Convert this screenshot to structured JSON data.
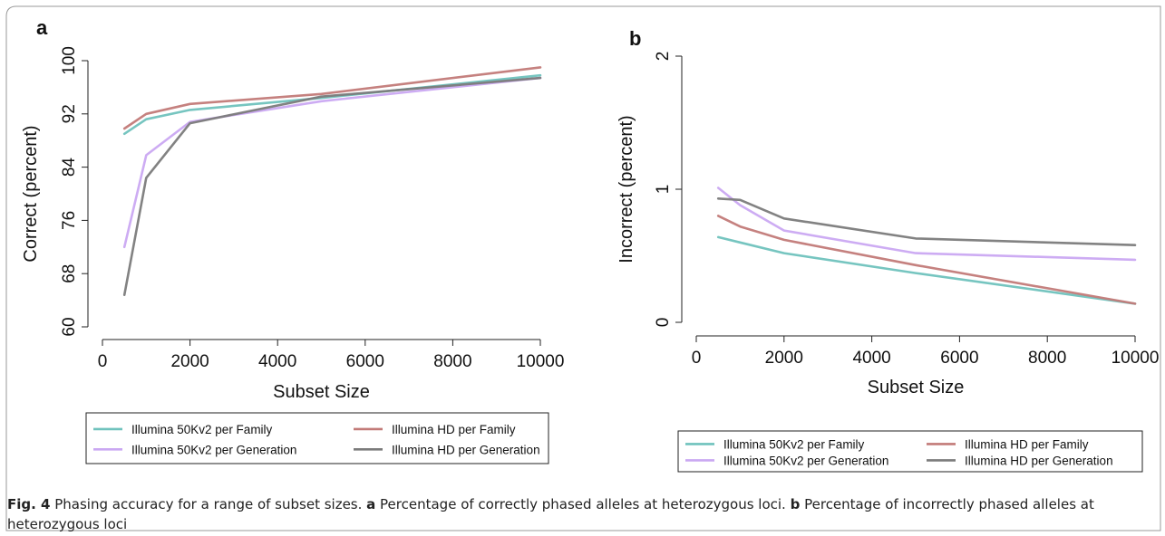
{
  "figure": {
    "panel_labels": [
      "a",
      "b"
    ],
    "caption": {
      "fig_label": "Fig. 4",
      "text1": "  Phasing accuracy for a range of subset sizes. ",
      "label_a": "a",
      "text2": " Percentage of correctly phased alleles at heterozygous loci. ",
      "label_b": "b",
      "text3": " Percentage of incorrectly phased alleles at heterozygous loci"
    }
  },
  "chart_data": [
    {
      "type": "line",
      "panel": "a",
      "xlabel": "Subset Size",
      "ylabel": "Correct (percent)",
      "xlim": [
        0,
        10000
      ],
      "ylim": [
        60,
        100
      ],
      "xticks": [
        0,
        2000,
        4000,
        6000,
        8000,
        10000
      ],
      "yticks": [
        60,
        68,
        76,
        84,
        92,
        100
      ],
      "grid": false,
      "legend_position": "bottom",
      "series": [
        {
          "name": "Illumina 50Kv2 per Family",
          "color": "#6fc2bd",
          "x": [
            500,
            1000,
            2000,
            5000,
            10000
          ],
          "y": [
            89.0,
            91.2,
            92.6,
            94.4,
            97.8
          ]
        },
        {
          "name": "Illumina HD per Family",
          "color": "#c27a78",
          "x": [
            500,
            1000,
            2000,
            5000,
            10000
          ],
          "y": [
            89.8,
            92.0,
            93.5,
            95.0,
            99.0
          ]
        },
        {
          "name": "Illumina 50Kv2 per Generation",
          "color": "#caa8f2",
          "x": [
            500,
            1000,
            2000,
            5000,
            10000
          ],
          "y": [
            72.0,
            85.8,
            90.8,
            93.9,
            97.4
          ]
        },
        {
          "name": "Illumina HD per Generation",
          "color": "#7b7b7b",
          "x": [
            500,
            1000,
            2000,
            5000,
            10000
          ],
          "y": [
            64.8,
            82.4,
            90.6,
            94.6,
            97.4
          ]
        }
      ]
    },
    {
      "type": "line",
      "panel": "b",
      "xlabel": "Subset Size",
      "ylabel": "Incorrect (percent)",
      "xlim": [
        0,
        10000
      ],
      "ylim": [
        0,
        2
      ],
      "xticks": [
        0,
        2000,
        4000,
        6000,
        8000,
        10000
      ],
      "yticks": [
        0,
        1,
        2
      ],
      "grid": false,
      "legend_position": "bottom",
      "series": [
        {
          "name": "Illumina 50Kv2 per Family",
          "color": "#6fc2bd",
          "x": [
            500,
            1000,
            2000,
            5000,
            10000
          ],
          "y": [
            0.64,
            0.6,
            0.52,
            0.37,
            0.14
          ]
        },
        {
          "name": "Illumina HD per Family",
          "color": "#c27a78",
          "x": [
            500,
            1000,
            2000,
            5000,
            10000
          ],
          "y": [
            0.8,
            0.72,
            0.62,
            0.43,
            0.14
          ]
        },
        {
          "name": "Illumina 50Kv2 per Generation",
          "color": "#caa8f2",
          "x": [
            500,
            1000,
            2000,
            5000,
            10000
          ],
          "y": [
            1.01,
            0.88,
            0.69,
            0.52,
            0.47
          ]
        },
        {
          "name": "Illumina HD per Generation",
          "color": "#7b7b7b",
          "x": [
            500,
            1000,
            2000,
            5000,
            10000
          ],
          "y": [
            0.93,
            0.92,
            0.78,
            0.63,
            0.58
          ]
        }
      ]
    }
  ]
}
